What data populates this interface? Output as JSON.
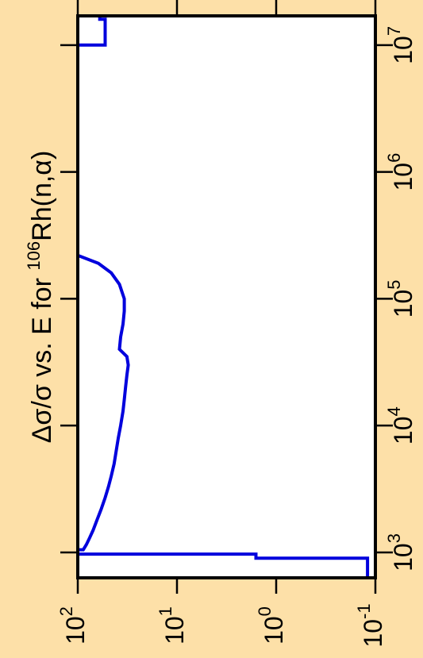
{
  "colors": {
    "background": "#fde0a8",
    "plot_background": "#ffffff",
    "axis": "#000000",
    "series": "#0000dd"
  },
  "chart_data": {
    "type": "line",
    "orientation": "rotated-90-counterclockwise",
    "title": {
      "prefix": "Δσ/σ vs. E for ",
      "isotope_mass": "106",
      "element": "Rh",
      "reaction": "(n,α)"
    },
    "x_axis": {
      "scale": "log",
      "range": [
        630,
        17000000
      ],
      "ticks": [
        {
          "value": 1000,
          "base": "10",
          "exp": "3"
        },
        {
          "value": 10000,
          "base": "10",
          "exp": "4"
        },
        {
          "value": 100000,
          "base": "10",
          "exp": "5"
        },
        {
          "value": 1000000,
          "base": "10",
          "exp": "6"
        },
        {
          "value": 10000000,
          "base": "10",
          "exp": "7"
        }
      ]
    },
    "y_axis": {
      "scale": "log",
      "reversed": true,
      "range": [
        0.1,
        100
      ],
      "ticks": [
        {
          "value": 100,
          "base": "10",
          "exp": "2"
        },
        {
          "value": 10,
          "base": "10",
          "exp": "1"
        },
        {
          "value": 1,
          "base": "10",
          "exp": "0"
        },
        {
          "value": 0.1,
          "base": "10",
          "exp": "-1"
        }
      ]
    },
    "series": [
      {
        "style": "step",
        "points": [
          [
            630,
            0.12
          ],
          [
            900,
            0.12
          ],
          [
            900,
            1.6
          ],
          [
            970,
            1.6
          ],
          [
            970,
            100
          ],
          [
            1050,
            100
          ],
          [
            1050,
            88
          ],
          [
            1150,
            82
          ],
          [
            1300,
            76
          ],
          [
            1500,
            70
          ],
          [
            1800,
            64
          ],
          [
            2200,
            58
          ],
          [
            2700,
            53
          ],
          [
            3300,
            49
          ],
          [
            4000,
            46
          ],
          [
            5000,
            43
          ],
          [
            6300,
            41
          ],
          [
            8000,
            39
          ],
          [
            10000,
            37
          ],
          [
            13000,
            35
          ],
          [
            16000,
            34
          ],
          [
            20000,
            33
          ],
          [
            25000,
            32
          ],
          [
            30000,
            31
          ],
          [
            35000,
            32
          ],
          [
            40000,
            38
          ],
          [
            50000,
            37
          ],
          [
            63000,
            35
          ],
          [
            80000,
            34
          ],
          [
            100000,
            34
          ],
          [
            130000,
            38
          ],
          [
            160000,
            46
          ],
          [
            190000,
            62
          ],
          [
            220000,
            100
          ],
          [
            10000000,
            100
          ],
          [
            10000000,
            53
          ],
          [
            16000000,
            53
          ],
          [
            16000000,
            60
          ],
          [
            17000000,
            60
          ]
        ]
      }
    ]
  }
}
